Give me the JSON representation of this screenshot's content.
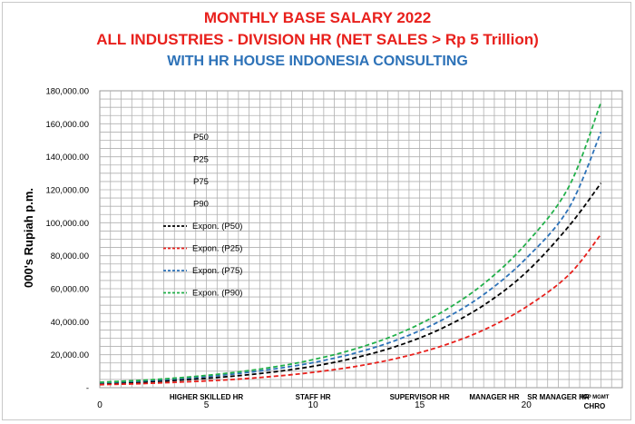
{
  "titles": {
    "line1": "MONTHLY BASE SALARY 2022",
    "line2": "ALL INDUSTRIES - DIVISION  HR (NET SALES > Rp 5 Trillion)",
    "line3": "WITH HR HOUSE INDONESIA CONSULTING"
  },
  "colors": {
    "title_red": "#e8201c",
    "title_blue": "#2d72b8",
    "P50": "#000000",
    "P25": "#e8201c",
    "P75": "#2d72b8",
    "P90": "#22b04a",
    "grid": "#b0b0b0"
  },
  "chart_data": {
    "type": "line",
    "ylabel": "000's Rupiah p.m.",
    "ylim": [
      0,
      180000
    ],
    "y_ticks": [
      "-",
      "20,000.00",
      "40,000.00",
      "60,000.00",
      "80,000.00",
      "100,000.00",
      "120,000.00",
      "140,000.00",
      "160,000.00",
      "180,000.00"
    ],
    "xlim": [
      0,
      24.5
    ],
    "x_ticks": [
      "0",
      "5",
      "10",
      "15",
      "20"
    ],
    "category_labels": [
      {
        "x": 5,
        "label": "HIGHER SKILLED HR"
      },
      {
        "x": 10,
        "label": "STAFF  HR"
      },
      {
        "x": 15,
        "label": "SUPERVISOR HR"
      },
      {
        "x": 18.5,
        "label": "MANAGER HR"
      },
      {
        "x": 21.5,
        "label": "SR MANAGER HR"
      }
    ],
    "top_labels": [
      "TOP MGMT",
      "CHRO"
    ],
    "grid": true,
    "legend_position": "left-inside",
    "legend": [
      "P50",
      "P25",
      "P75",
      "P90",
      "Expon. (P50)",
      "Expon. (P25)",
      "Expon. (P75)",
      "Expon. (P90)"
    ],
    "series": [
      {
        "name": "Expon. (P50)",
        "x": [
          0,
          2,
          4,
          6,
          8,
          10,
          12,
          14,
          16,
          18,
          20,
          22,
          23.5
        ],
        "values": [
          2500,
          3400,
          4800,
          6700,
          9300,
          13000,
          18200,
          25500,
          35700,
          50000,
          70000,
          98000,
          124000
        ]
      },
      {
        "name": "Expon. (P25)",
        "x": [
          0,
          2,
          4,
          6,
          8,
          10,
          12,
          14,
          16,
          18,
          20,
          22,
          23.5
        ],
        "values": [
          1800,
          2500,
          3500,
          4800,
          6700,
          9300,
          12900,
          18000,
          25100,
          35000,
          49000,
          68500,
          93000
        ]
      },
      {
        "name": "Expon. (P75)",
        "x": [
          0,
          2,
          4,
          6,
          8,
          10,
          12,
          14,
          16,
          18,
          20,
          22,
          23.5
        ],
        "values": [
          3000,
          4100,
          5700,
          7900,
          11000,
          15200,
          21100,
          29300,
          40700,
          56500,
          78500,
          109000,
          155000
        ]
      },
      {
        "name": "Expon. (P90)",
        "x": [
          0,
          2,
          4,
          6,
          8,
          10,
          12,
          14,
          16,
          18,
          20,
          22,
          23.5
        ],
        "values": [
          3300,
          4500,
          6300,
          8800,
          12200,
          17000,
          23600,
          32700,
          45500,
          63000,
          87500,
          122000,
          173000
        ]
      }
    ]
  }
}
